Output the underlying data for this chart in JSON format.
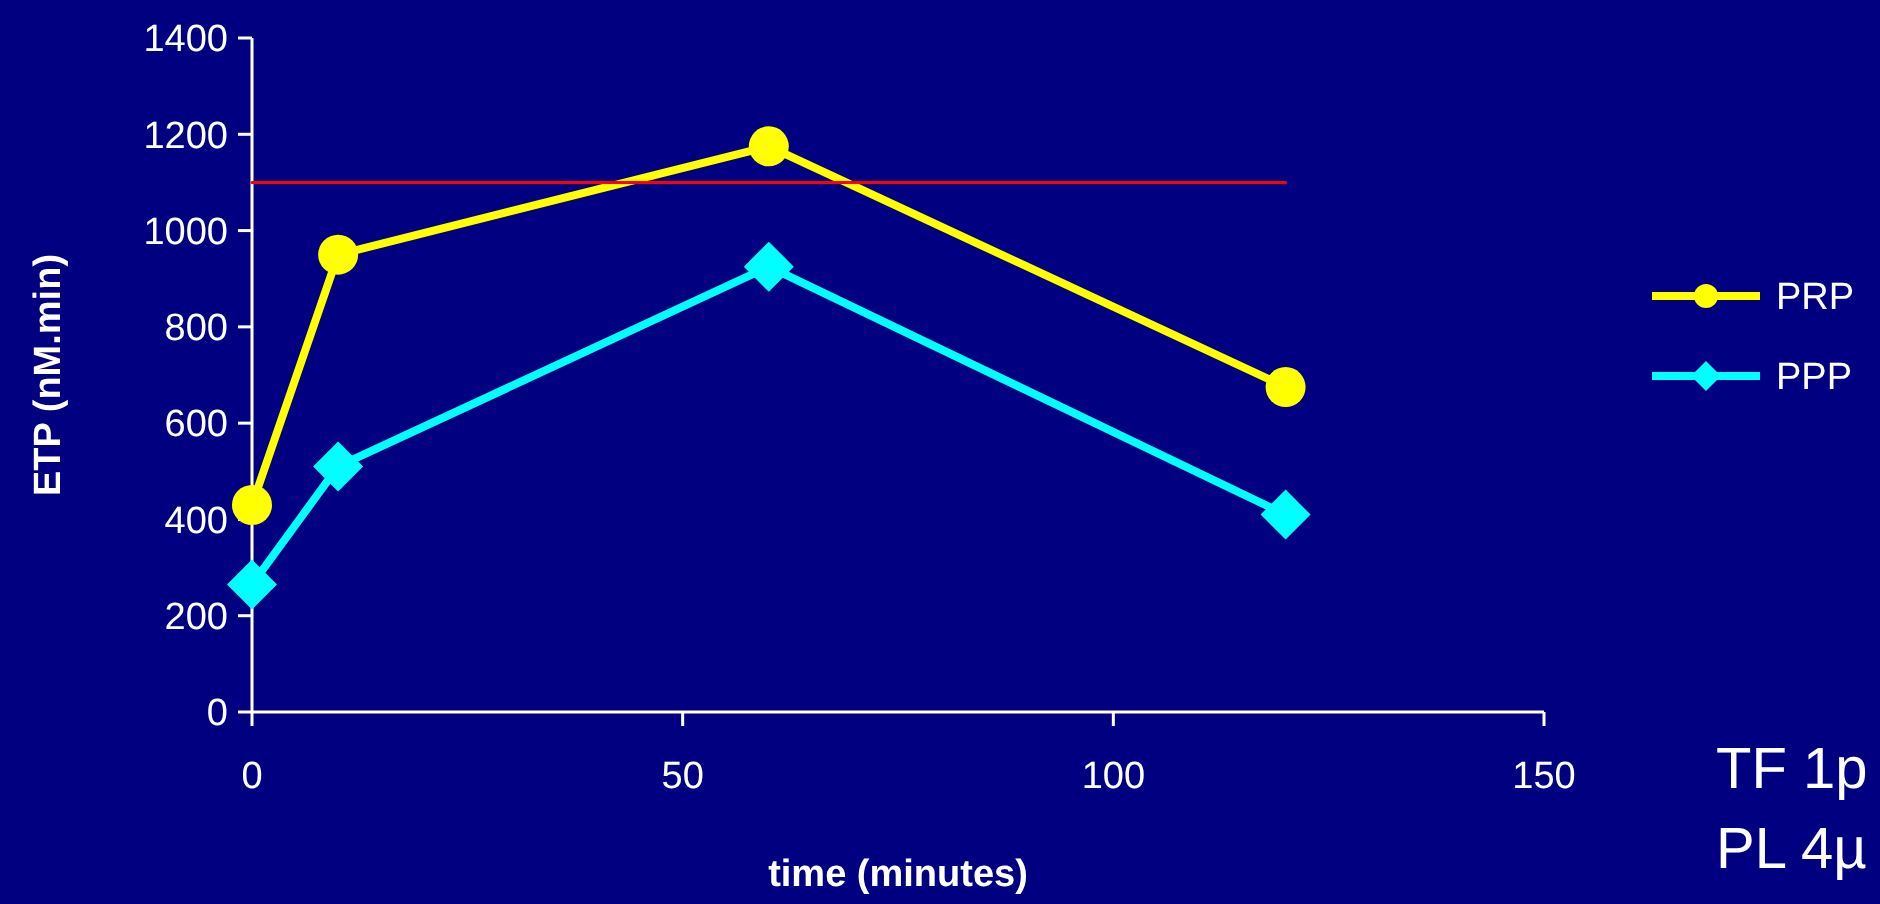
{
  "chart_data": {
    "type": "line",
    "xlabel": "time (minutes)",
    "ylabel": "ETP (nM.min)",
    "x": [
      0,
      10,
      60,
      120
    ],
    "xlim": [
      0,
      150
    ],
    "xticks": [
      0,
      50,
      100,
      150
    ],
    "ylim": [
      0,
      1400
    ],
    "yticks": [
      0,
      200,
      400,
      600,
      800,
      1000,
      1200,
      1400
    ],
    "legend": "right",
    "annotations": [
      "TF 1p",
      "PL 4µ"
    ],
    "series": [
      {
        "name": "PRP",
        "color": "#ffff00",
        "marker": "circle",
        "values": [
          430,
          950,
          1175,
          675
        ]
      },
      {
        "name": "PPP",
        "color": "#00ffff",
        "marker": "diamond",
        "values": [
          265,
          510,
          925,
          410
        ]
      },
      {
        "color": "#ff0000",
        "marker": "none",
        "x": [
          0,
          120
        ],
        "values": [
          1100,
          1100
        ]
      }
    ]
  }
}
